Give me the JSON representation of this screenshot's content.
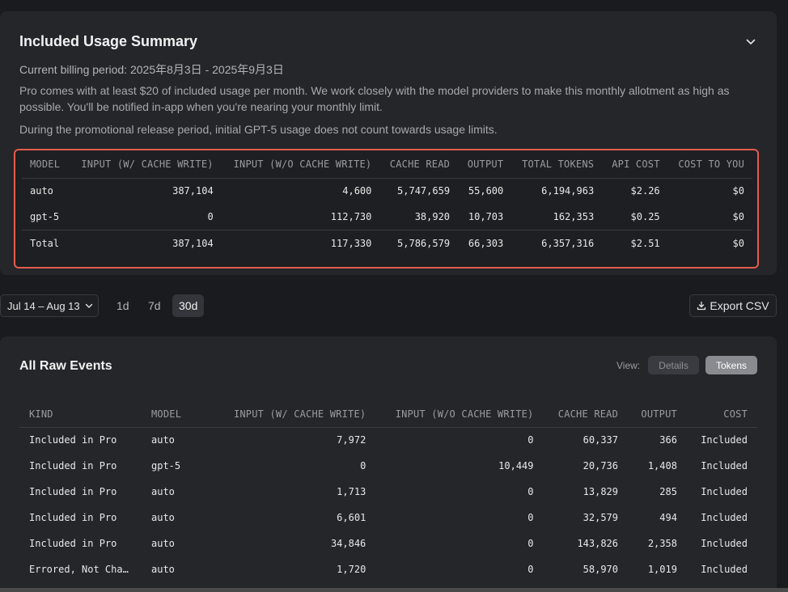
{
  "summary": {
    "title": "Included Usage Summary",
    "billing_period": "Current billing period: 2025年8月3日 - 2025年9月3日",
    "desc1": "Pro comes with at least $20 of included usage per month. We work closely with the model providers to make this monthly allotment as high as possible. You'll be notified in-app when you're nearing your monthly limit.",
    "desc2": "During the promotional release period, initial GPT-5 usage does not count towards usage limits.",
    "columns": [
      "MODEL",
      "INPUT (W/ CACHE WRITE)",
      "INPUT (W/O CACHE WRITE)",
      "CACHE READ",
      "OUTPUT",
      "TOTAL TOKENS",
      "API COST",
      "COST TO YOU"
    ],
    "rows": [
      [
        "auto",
        "387,104",
        "4,600",
        "5,747,659",
        "55,600",
        "6,194,963",
        "$2.26",
        "$0"
      ],
      [
        "gpt-5",
        "0",
        "112,730",
        "38,920",
        "10,703",
        "162,353",
        "$0.25",
        "$0"
      ]
    ],
    "total": [
      "Total",
      "387,104",
      "117,330",
      "5,786,579",
      "66,303",
      "6,357,316",
      "$2.51",
      "$0"
    ]
  },
  "controls": {
    "range_label": "Jul 14 – Aug 13",
    "ranges": [
      "1d",
      "7d",
      "30d"
    ],
    "active_range": "30d",
    "export_label": "Export CSV"
  },
  "events": {
    "title": "All Raw Events",
    "view_label": "View:",
    "view_details": "Details",
    "view_tokens": "Tokens",
    "columns": [
      "KIND",
      "MODEL",
      "INPUT (W/ CACHE WRITE)",
      "INPUT (W/O CACHE WRITE)",
      "CACHE READ",
      "OUTPUT",
      "COST"
    ],
    "rows": [
      [
        "Included in Pro",
        "auto",
        "7,972",
        "0",
        "60,337",
        "366",
        "Included"
      ],
      [
        "Included in Pro",
        "gpt-5",
        "0",
        "10,449",
        "20,736",
        "1,408",
        "Included"
      ],
      [
        "Included in Pro",
        "auto",
        "1,713",
        "0",
        "13,829",
        "285",
        "Included"
      ],
      [
        "Included in Pro",
        "auto",
        "6,601",
        "0",
        "32,579",
        "494",
        "Included"
      ],
      [
        "Included in Pro",
        "auto",
        "34,846",
        "0",
        "143,826",
        "2,358",
        "Included"
      ],
      [
        "Errored, Not Cha…",
        "auto",
        "1,720",
        "0",
        "58,970",
        "1,019",
        "Included"
      ]
    ]
  },
  "icons": {
    "collapse": "chevron-down-icon",
    "range": "chevron-down-icon",
    "export": "download-icon"
  },
  "colors": {
    "highlight_border": "#e25c4f",
    "card_bg": "#25262a",
    "page_bg": "#1a1b1e"
  }
}
